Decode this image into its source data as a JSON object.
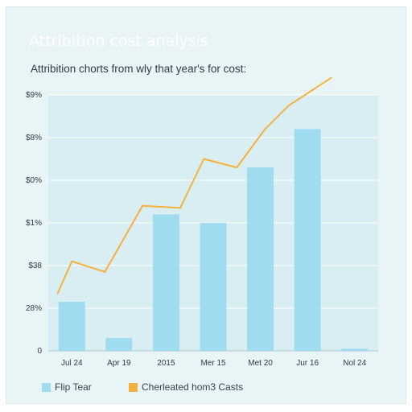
{
  "page": {
    "title": "Attribition cost analysis",
    "subtitle": "Attribition chorts from wly that year's for cost:"
  },
  "colors": {
    "background": "#e9f4f7",
    "plot_area": "#cce9ef",
    "bar": "#9fdcef",
    "line": "#f5b13e",
    "title": "#ffffff"
  },
  "chart_data": {
    "type": "bar",
    "categories": [
      "Jul 24",
      "Apr 19",
      "2015",
      "Mer 15",
      "Met 20",
      "Jur 16",
      "Nol 24"
    ],
    "y_tick_labels": [
      "0",
      "28%",
      "$38",
      "$1%",
      "$0%",
      "$8%",
      "$9%"
    ],
    "ylim": [
      0,
      6
    ],
    "grid": true,
    "legend_position": "bottom-left",
    "series": [
      {
        "name": "Flip Tear",
        "type": "bar",
        "color": "#9fdcef",
        "x": [
          0.5,
          1.5,
          2.5,
          3.5,
          4.5,
          5.5,
          6.5
        ],
        "values": [
          1.15,
          0.3,
          3.2,
          3.0,
          4.3,
          5.2,
          0.05
        ]
      },
      {
        "name": "Cherleated hom3 Casts",
        "type": "line",
        "color": "#f5b13e",
        "x": [
          0.2,
          0.5,
          1.2,
          2.0,
          2.8,
          3.3,
          4.0,
          4.6,
          5.1,
          6.0
        ],
        "values": [
          1.35,
          2.1,
          1.85,
          3.4,
          3.35,
          4.5,
          4.3,
          5.2,
          5.75,
          6.4
        ]
      }
    ]
  },
  "legend": {
    "items": [
      {
        "label": "Flip Tear",
        "color": "#9fdcef"
      },
      {
        "label": "Cherleated hom3 Casts",
        "color": "#f5b13e"
      }
    ]
  }
}
